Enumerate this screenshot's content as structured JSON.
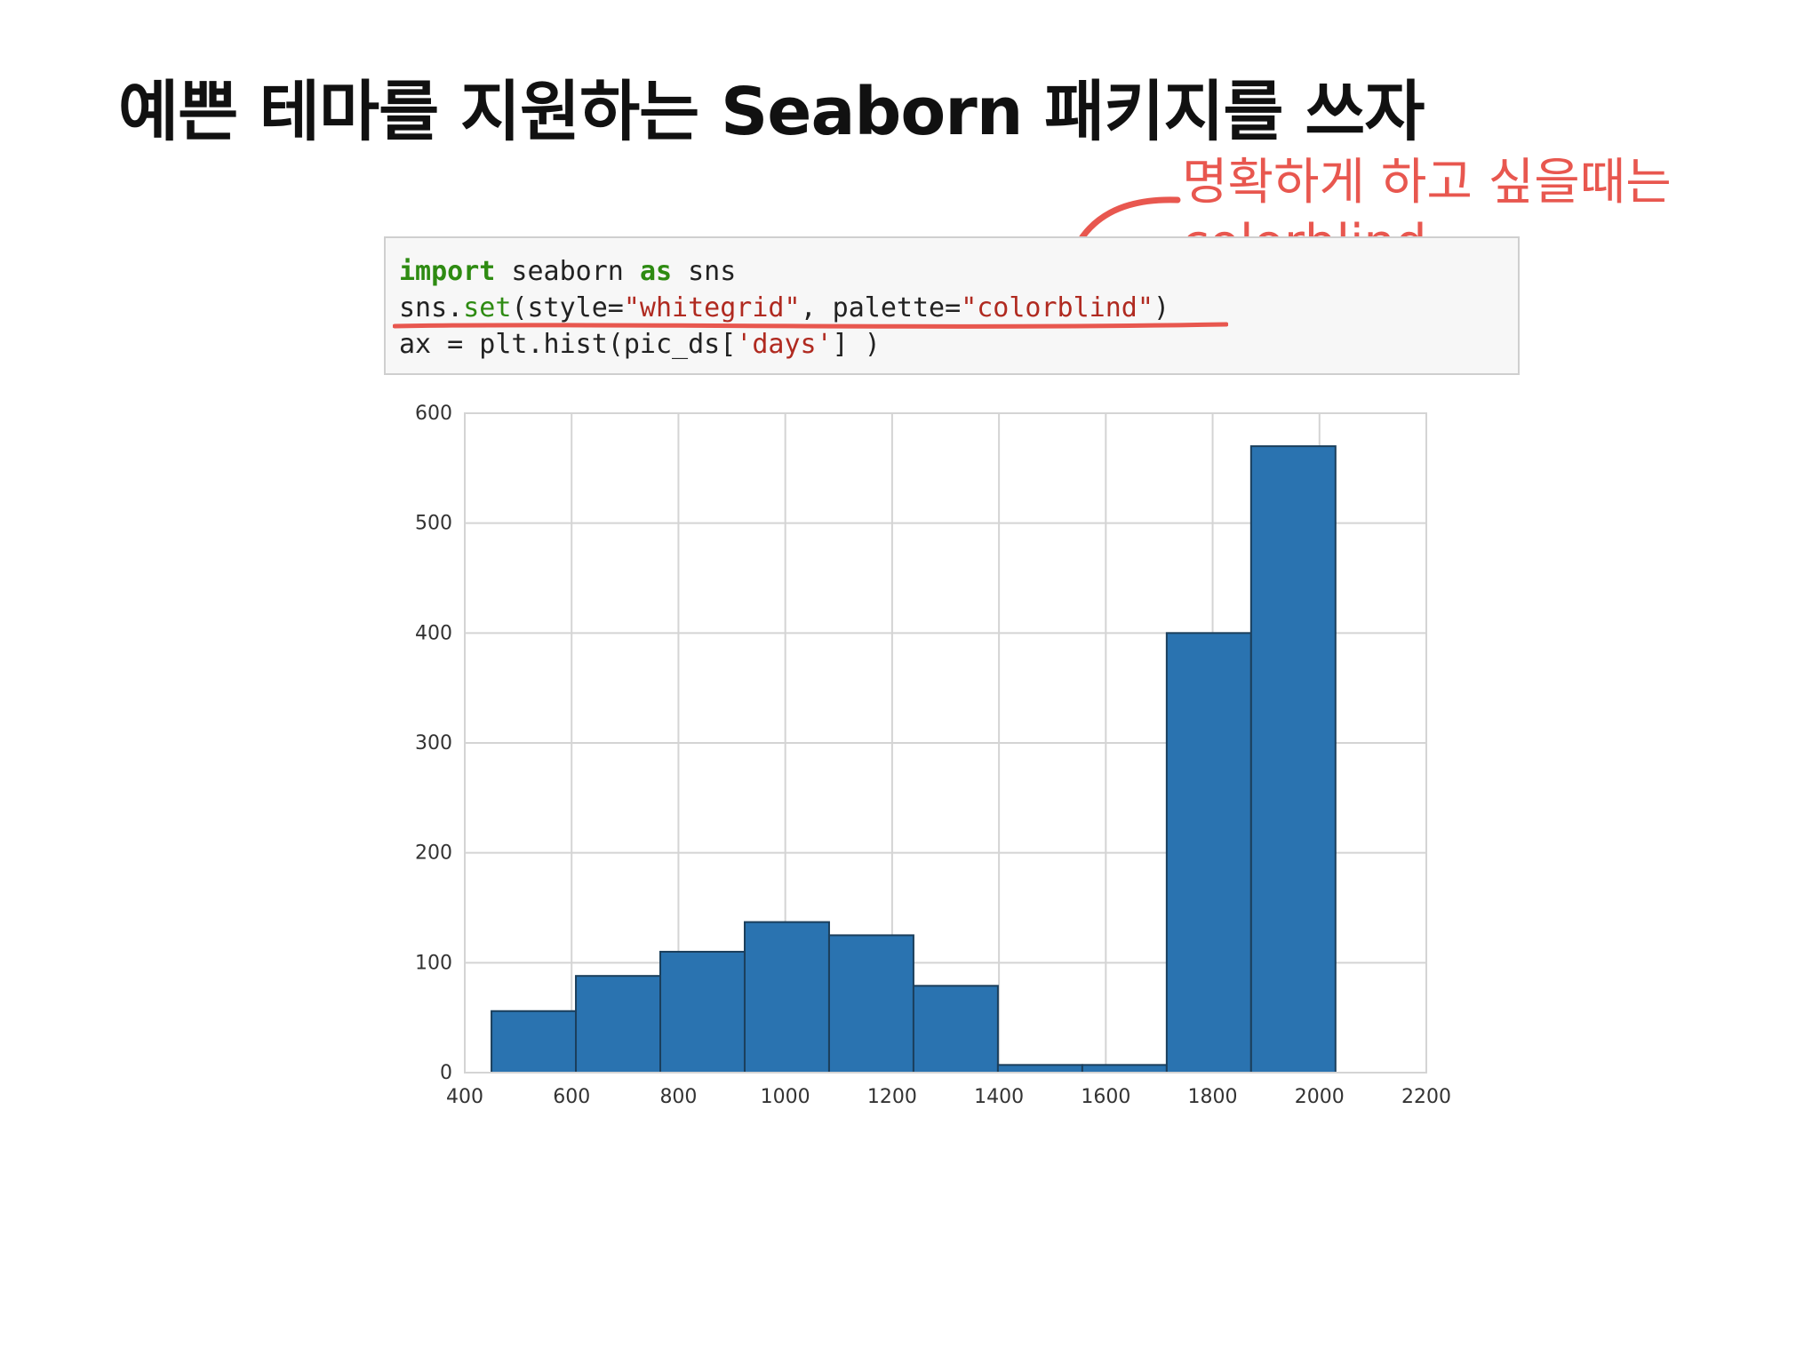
{
  "slide": {
    "title": "예쁜 테마를 지원하는 Seaborn 패키지를 쓰자",
    "note_line1": "명확하게 하고 싶을때는",
    "note_line2": "colorblind"
  },
  "code": {
    "line1": {
      "kw1": "import",
      "mid": " seaborn ",
      "kw2": "as",
      "end": " sns"
    },
    "line2": {
      "pre": "sns.",
      "fn": "set",
      "a": "(style=",
      "s1": "\"whitegrid\"",
      "b": ", palette=",
      "s2": "\"colorblind\"",
      "c": ")"
    },
    "line3": {
      "pre": "ax = plt.hist(pic_ds[",
      "s": "'days'",
      "end": "] )"
    }
  },
  "colors": {
    "bar": "#2a73b0",
    "bar_edge": "#1b3f5c",
    "grid": "#d4d4d4",
    "annotation": "#e8574f"
  },
  "chart_data": {
    "type": "bar",
    "subtype": "histogram",
    "bins": [
      {
        "x0": 450,
        "x1": 608,
        "count": 56
      },
      {
        "x0": 608,
        "x1": 766,
        "count": 88
      },
      {
        "x0": 766,
        "x1": 924,
        "count": 110
      },
      {
        "x0": 924,
        "x1": 1082,
        "count": 137
      },
      {
        "x0": 1082,
        "x1": 1240,
        "count": 125
      },
      {
        "x0": 1240,
        "x1": 1398,
        "count": 79
      },
      {
        "x0": 1398,
        "x1": 1556,
        "count": 7
      },
      {
        "x0": 1556,
        "x1": 1714,
        "count": 7
      },
      {
        "x0": 1714,
        "x1": 1872,
        "count": 400
      },
      {
        "x0": 1872,
        "x1": 2030,
        "count": 570
      }
    ],
    "xlim": [
      400,
      2200
    ],
    "ylim": [
      0,
      600
    ],
    "xticks": [
      400,
      600,
      800,
      1000,
      1200,
      1400,
      1600,
      1800,
      2000,
      2200
    ],
    "yticks": [
      0,
      100,
      200,
      300,
      400,
      500,
      600
    ],
    "grid": true,
    "title": "",
    "xlabel": "",
    "ylabel": ""
  }
}
